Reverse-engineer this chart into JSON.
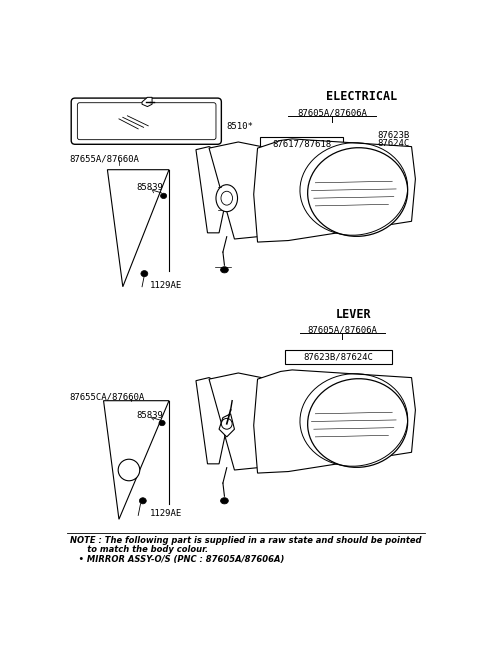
{
  "background_color": "#ffffff",
  "section_electrical": "ELECTRICAL",
  "section_lever": "LEVER",
  "note_line1": "NOTE : The following part is supplied in a raw state and should be pointed",
  "note_line2": "      to match the body colour.",
  "note_line3": "   • MIRROR ASSY-O/S (PNC : 87605A/87606A)",
  "label_8510": "8510*",
  "label_elec_assy": "87605A/87606A",
  "label_elec_inner": "87617/87618",
  "label_elec_corner1": "87623B",
  "label_elec_corner2": "87624C",
  "label_brk_elec": "87655A/87660A",
  "label_bolt_elec": "85839",
  "label_nut_elec": "1129AE",
  "label_lever_assy": "87605A/87606A",
  "label_lever_corner": "87623B/87624C",
  "label_brk_lever": "87655CA/87660A",
  "label_bolt_lever": "85839",
  "label_nut_lever": "1129AE"
}
